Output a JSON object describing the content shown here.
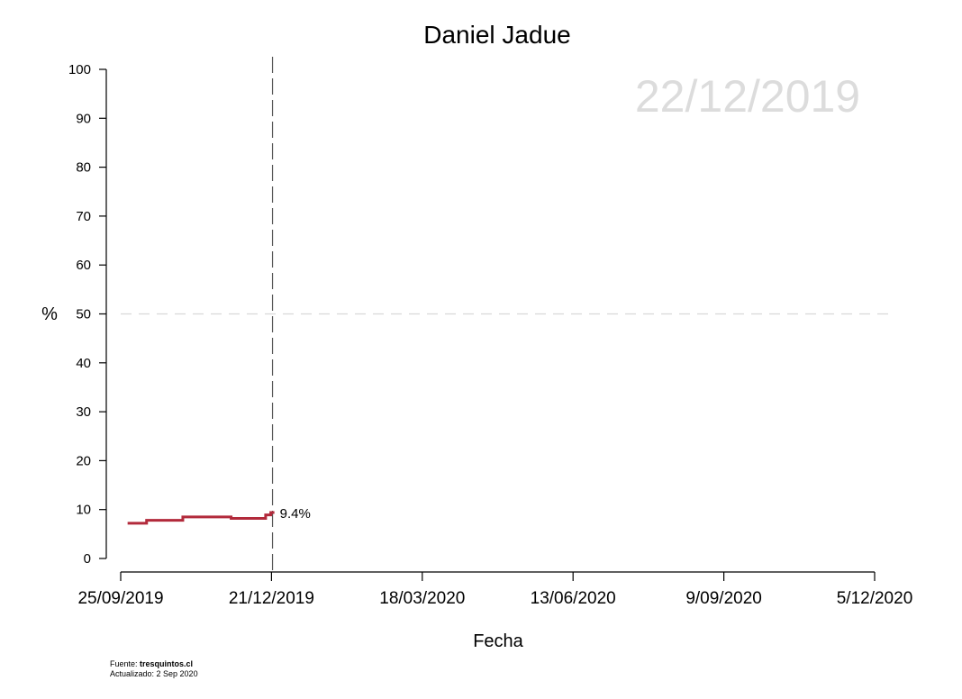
{
  "chart_data": {
    "type": "line",
    "title": "Daniel Jadue",
    "xlabel": "Fecha",
    "ylabel": "%",
    "ylim": [
      0,
      100
    ],
    "yticks": [
      0,
      10,
      20,
      30,
      40,
      50,
      60,
      70,
      80,
      90,
      100
    ],
    "xticks": [
      "25/09/2019",
      "21/12/2019",
      "18/03/2020",
      "13/06/2020",
      "9/09/2020",
      "5/12/2020"
    ],
    "xlim": [
      "2019-09-25",
      "2020-12-05"
    ],
    "watermark_date": "22/12/2019",
    "reference_line_y": 50,
    "reference_line_x": "2019-12-22",
    "series": [
      {
        "color": "#b22a3b",
        "step": true,
        "points": [
          {
            "x": "2019-09-29",
            "y": 7.2
          },
          {
            "x": "2019-10-10",
            "y": 7.8
          },
          {
            "x": "2019-10-31",
            "y": 8.5
          },
          {
            "x": "2019-11-16",
            "y": 8.5
          },
          {
            "x": "2019-11-28",
            "y": 8.2
          },
          {
            "x": "2019-12-18",
            "y": 8.9
          },
          {
            "x": "2019-12-21",
            "y": 9.4
          }
        ]
      }
    ],
    "last_value_label": "9.4%",
    "grid": false
  },
  "footer": {
    "source_prefix": "Fuente: ",
    "source_name": "tresquintos.cl",
    "updated": "Actualizado: 2 Sep 2020"
  }
}
